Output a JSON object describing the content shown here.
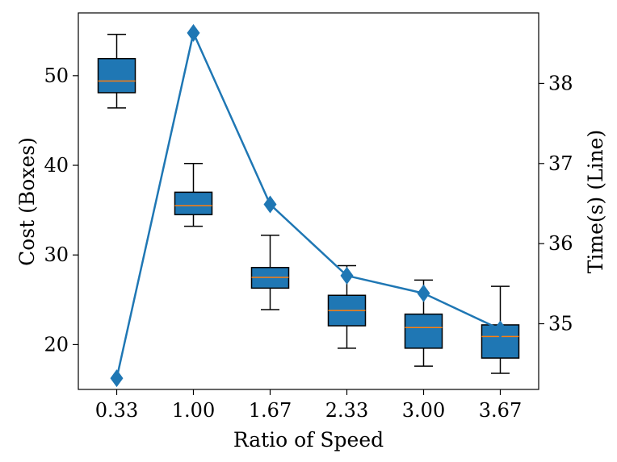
{
  "chart_data": {
    "type": "box+line",
    "title": "",
    "xlabel": "Ratio of Speed",
    "ylabel_left": "Cost (Boxes)",
    "ylabel_right": "Time(s) (Line)",
    "categories": [
      "0.33",
      "1.00",
      "1.67",
      "2.33",
      "3.00",
      "3.67"
    ],
    "y_left_lim": [
      15,
      57
    ],
    "y_left_ticks": [
      20,
      30,
      40,
      50
    ],
    "y_right_lim": [
      34.18,
      38.88
    ],
    "y_right_ticks": [
      35,
      36,
      37,
      38
    ],
    "boxes": [
      {
        "whisker_low": 46.4,
        "q1": 48.1,
        "median": 49.4,
        "q3": 51.9,
        "whisker_high": 54.6
      },
      {
        "whisker_low": 33.2,
        "q1": 34.5,
        "median": 35.5,
        "q3": 37.0,
        "whisker_high": 40.2
      },
      {
        "whisker_low": 23.9,
        "q1": 26.3,
        "median": 27.5,
        "q3": 28.6,
        "whisker_high": 32.2
      },
      {
        "whisker_low": 19.6,
        "q1": 22.1,
        "median": 23.8,
        "q3": 25.5,
        "whisker_high": 28.8
      },
      {
        "whisker_low": 17.6,
        "q1": 19.6,
        "median": 21.9,
        "q3": 23.4,
        "whisker_high": 27.2
      },
      {
        "whisker_low": 16.8,
        "q1": 18.5,
        "median": 20.9,
        "q3": 22.2,
        "whisker_high": 26.5
      }
    ],
    "line": {
      "name": "Time(s)",
      "marker": "diamond",
      "values": [
        34.32,
        38.63,
        36.49,
        35.6,
        35.38,
        34.93
      ]
    },
    "colors": {
      "box_fill": "#1f77b4",
      "median": "#ff7f0e",
      "line": "#1f77b4",
      "edge": "#000000"
    }
  }
}
